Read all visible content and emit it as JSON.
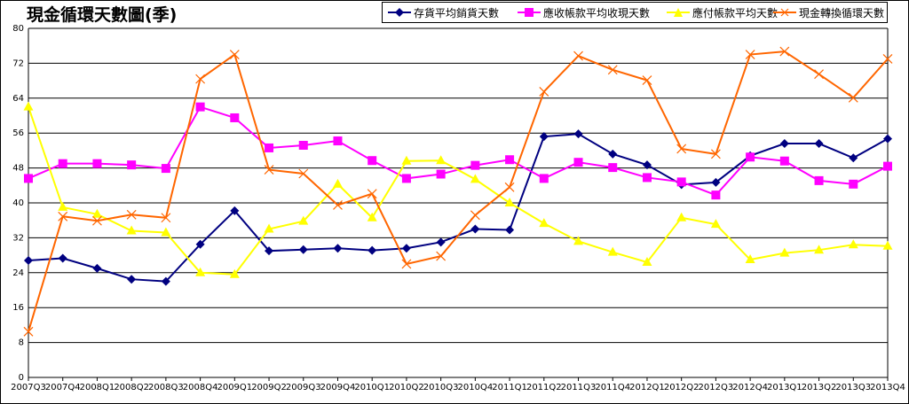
{
  "title": "現金循環天數圖(季)",
  "chart_data": {
    "type": "line",
    "title": "現金循環天數圖(季)",
    "categories": [
      "2007Q3",
      "2007Q4",
      "2008Q1",
      "2008Q2",
      "2008Q3",
      "2008Q4",
      "2009Q1",
      "2009Q2",
      "2009Q3",
      "2009Q4",
      "2010Q1",
      "2010Q2",
      "2010Q3",
      "2010Q4",
      "2011Q1",
      "2011Q2",
      "2011Q3",
      "2011Q4",
      "2012Q1",
      "2012Q2",
      "2012Q3",
      "2012Q4",
      "2013Q1",
      "2013Q2",
      "2013Q3",
      "2013Q4"
    ],
    "ylim": [
      0,
      80
    ],
    "yticks": [
      0,
      8,
      16,
      24,
      32,
      40,
      48,
      56,
      64,
      72,
      80
    ],
    "grid": true,
    "legend": "top-right",
    "series": [
      {
        "name": "存貨平均銷貨天數",
        "color": "#000080",
        "marker": "diamond",
        "values": [
          26.8,
          27.3,
          25.0,
          22.5,
          22.0,
          30.5,
          38.2,
          29.0,
          29.3,
          29.6,
          29.1,
          29.6,
          31.0,
          34.0,
          33.8,
          55.2,
          55.8,
          51.2,
          48.7,
          44.2,
          44.7,
          50.8,
          53.6,
          53.6,
          50.3,
          54.7
        ]
      },
      {
        "name": "應收帳款平均收現天數",
        "color": "#FF00FF",
        "marker": "square",
        "values": [
          45.6,
          49.0,
          49.0,
          48.7,
          47.9,
          62.0,
          59.5,
          52.6,
          53.2,
          54.2,
          49.7,
          45.6,
          46.6,
          48.6,
          49.9,
          45.6,
          49.3,
          48.1,
          45.8,
          44.8,
          41.8,
          50.5,
          49.6,
          45.1,
          44.3,
          48.4
        ]
      },
      {
        "name": "應付帳款平均天數",
        "color": "#FFFF00",
        "marker": "triangle",
        "values": [
          62.0,
          39.0,
          37.4,
          33.6,
          33.2,
          24.0,
          23.6,
          34.0,
          35.8,
          44.3,
          36.6,
          49.6,
          49.7,
          45.4,
          40.0,
          35.3,
          31.2,
          28.7,
          26.4,
          36.6,
          35.1,
          27.0,
          28.5,
          29.2,
          30.4,
          30.1
        ]
      },
      {
        "name": "現金轉換循環天數",
        "color": "#FF6600",
        "marker": "x",
        "values": [
          10.5,
          36.9,
          35.9,
          37.3,
          36.6,
          68.4,
          74.0,
          47.6,
          46.7,
          39.5,
          42.1,
          26.0,
          27.8,
          37.2,
          43.6,
          65.5,
          73.7,
          70.5,
          68.1,
          52.4,
          51.2,
          74.0,
          74.7,
          69.5,
          64.1,
          73.0
        ]
      }
    ]
  }
}
